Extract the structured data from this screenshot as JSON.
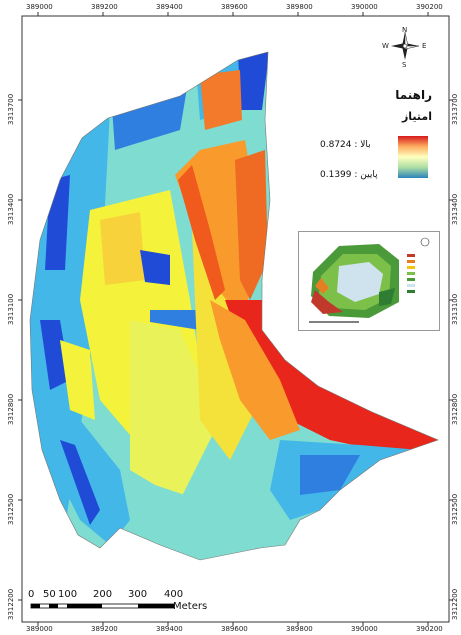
{
  "map": {
    "x_ticks": [
      "389000",
      "389200",
      "389400",
      "389600",
      "389800",
      "390000",
      "390200"
    ],
    "y_ticks_left": [
      "3313700",
      "3313400",
      "3313100",
      "3312800",
      "3312500",
      "3312200"
    ],
    "y_ticks_right": [
      "3313700",
      "3313400",
      "3313100",
      "3312800",
      "3312500",
      "3312200"
    ]
  },
  "legend": {
    "title": "راهنما",
    "field": "امتیاز",
    "high_label": "بالا : 0.8724",
    "low_label": "پایین : 0.1399",
    "ramp_colors": [
      "#d7191c",
      "#fdae61",
      "#ffffbf",
      "#abdda4",
      "#2b83ba"
    ]
  },
  "scale_bar": {
    "labels": [
      "0",
      "50",
      "100",
      "200",
      "300",
      "400"
    ],
    "unit": "Meters"
  },
  "north_arrow": {
    "letters": [
      "N",
      "E",
      "S",
      "W"
    ]
  },
  "colors": {
    "high": "#e8261c",
    "mid_high": "#f89a2c",
    "mid": "#f4f23a",
    "mid_low": "#7fdcd0",
    "low": "#43b7e8",
    "very_low": "#1f4bd6"
  }
}
